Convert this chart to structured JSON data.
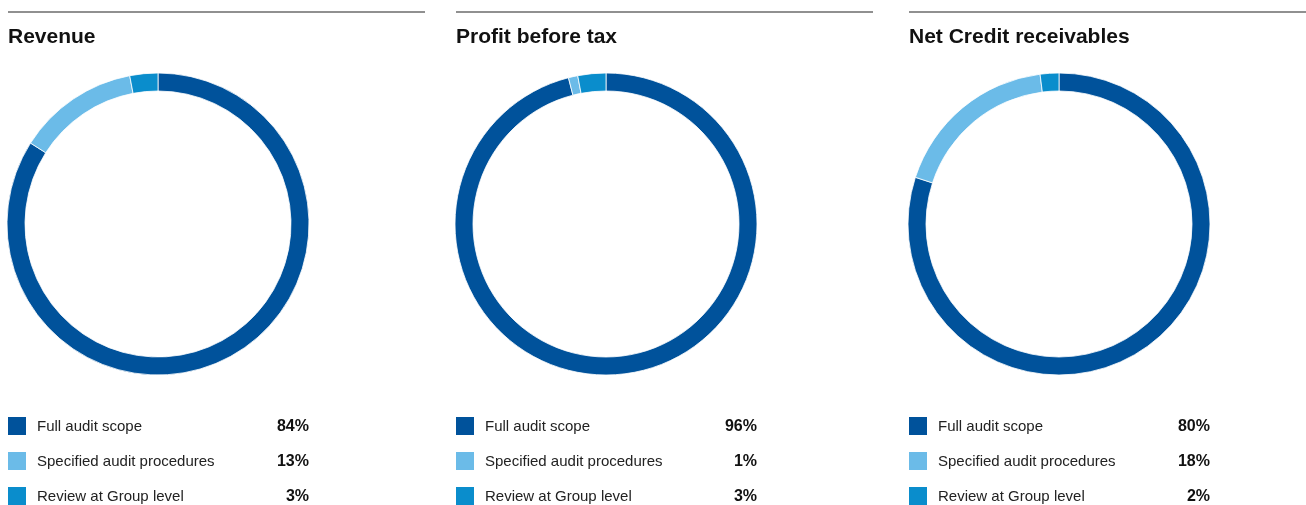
{
  "chart_data": [
    {
      "type": "donut",
      "title": "Revenue",
      "categories": [
        "Full audit scope",
        "Specified audit procedures",
        "Review at Group level"
      ],
      "values": [
        84,
        13,
        3
      ],
      "colors": [
        "#00529b",
        "#6bbbe8",
        "#0a8dcc"
      ],
      "value_labels": [
        "84%",
        "13%",
        "3%"
      ],
      "legend": "bottom"
    },
    {
      "type": "donut",
      "title": "Profit before tax",
      "categories": [
        "Full audit scope",
        "Specified audit procedures",
        "Review at Group level"
      ],
      "values": [
        96,
        1,
        3
      ],
      "colors": [
        "#00529b",
        "#6bbbe8",
        "#0a8dcc"
      ],
      "value_labels": [
        "96%",
        "1%",
        "3%"
      ],
      "legend": "bottom"
    },
    {
      "type": "donut",
      "title": "Net Credit receivables",
      "categories": [
        "Full audit scope",
        "Specified audit procedures",
        "Review at Group level"
      ],
      "values": [
        80,
        18,
        2
      ],
      "colors": [
        "#00529b",
        "#6bbbe8",
        "#0a8dcc"
      ],
      "value_labels": [
        "80%",
        "18%",
        "2%"
      ],
      "legend": "bottom"
    }
  ]
}
